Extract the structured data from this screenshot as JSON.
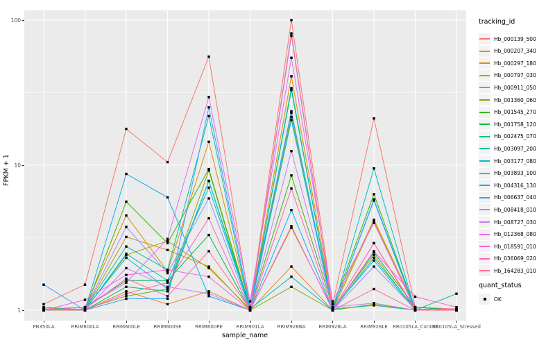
{
  "figure": {
    "y_axis_title": "FPKM + 1",
    "x_axis_title": "sample_name",
    "legend": {
      "tracking_title": "tracking_id",
      "quant_title": "quant_status",
      "quant_items": [
        "OK"
      ]
    }
  },
  "chart_data": {
    "type": "line",
    "title": "",
    "xlabel": "sample_name",
    "ylabel": "FPKM + 1",
    "y_scale": "log10",
    "ylim": [
      0.85,
      115
    ],
    "y_ticks": [
      1,
      10,
      100
    ],
    "y_minor_ticks": [
      3.162,
      31.62
    ],
    "grid": true,
    "legend_position": "right",
    "panel_bg": "#EBEBEB",
    "grid_color": "#FFFFFF",
    "point_color": "#000000",
    "point_shape": "square",
    "quant_status_value": "OK",
    "categories": [
      "PB350LA",
      "RRIM600LA",
      "RRIM600LE",
      "RRIM600SE",
      "RRIM600PE",
      "RRIM901LA",
      "RRIM928BA",
      "RRIM928LA",
      "RRIM928LE",
      "RRII105LA_Control",
      "RRII105LA_Stressed"
    ],
    "series": [
      {
        "name": "Hb_000139_500",
        "color": "#F8766D",
        "values": [
          1.1,
          1.5,
          17.8,
          10.5,
          56,
          1.05,
          100,
          1.1,
          21,
          1.05,
          1.02
        ]
      },
      {
        "name": "Hb_000207_340",
        "color": "#EA8331",
        "values": [
          1.0,
          1.0,
          1.35,
          1.1,
          1.35,
          1.0,
          2.0,
          1.0,
          2.9,
          1.02,
          1.0
        ]
      },
      {
        "name": "Hb_000297_180",
        "color": "#D89000",
        "values": [
          1.02,
          1.05,
          4.5,
          1.85,
          14.5,
          1.02,
          41,
          1.05,
          4.2,
          1.05,
          1.0
        ]
      },
      {
        "name": "Hb_000797_030",
        "color": "#C09B00",
        "values": [
          1.0,
          1.02,
          3.2,
          2.6,
          2.0,
          1.0,
          3.7,
          1.02,
          2.4,
          1.0,
          1.0
        ]
      },
      {
        "name": "Hb_000911_050",
        "color": "#A3A500",
        "values": [
          1.02,
          1.0,
          2.4,
          3.0,
          1.95,
          1.02,
          21.5,
          1.0,
          4.1,
          1.02,
          1.0
        ]
      },
      {
        "name": "Hb_001360_060",
        "color": "#7CAE00",
        "values": [
          1.0,
          1.02,
          1.25,
          1.4,
          9.2,
          1.0,
          1.45,
          1.0,
          1.1,
          1.0,
          1.02
        ]
      },
      {
        "name": "Hb_001545_270",
        "color": "#39B600",
        "values": [
          1.05,
          1.0,
          5.6,
          2.9,
          9.4,
          1.02,
          8.5,
          1.05,
          6.3,
          1.02,
          1.0
        ]
      },
      {
        "name": "Hb_001758_120",
        "color": "#00BB4E",
        "values": [
          1.0,
          1.05,
          1.6,
          1.6,
          3.3,
          1.0,
          33,
          1.0,
          2.5,
          1.05,
          1.0
        ]
      },
      {
        "name": "Hb_002475_070",
        "color": "#00BF7D",
        "values": [
          1.02,
          1.0,
          1.45,
          1.35,
          7.8,
          1.05,
          23,
          1.02,
          1.08,
          1.0,
          1.3
        ]
      },
      {
        "name": "Hb_003097_200",
        "color": "#00C1A3",
        "values": [
          1.0,
          1.02,
          2.75,
          1.9,
          21.8,
          1.0,
          34,
          1.0,
          2.3,
          1.02,
          1.0
        ]
      },
      {
        "name": "Hb_003177_080",
        "color": "#00BFC4",
        "values": [
          1.05,
          1.0,
          2.45,
          1.6,
          7.0,
          1.02,
          1.7,
          1.0,
          9.5,
          1.0,
          1.0
        ]
      },
      {
        "name": "Hb_003893_100",
        "color": "#00BAE0",
        "values": [
          1.0,
          1.02,
          2.3,
          1.4,
          7.8,
          1.0,
          20.5,
          1.02,
          2.2,
          1.0,
          1.02
        ]
      },
      {
        "name": "Hb_004316_130",
        "color": "#00B0F6",
        "values": [
          1.02,
          1.0,
          8.7,
          6.0,
          1.25,
          1.0,
          4.9,
          1.0,
          5.8,
          1.02,
          1.0
        ]
      },
      {
        "name": "Hb_006637_040",
        "color": "#35A2FF",
        "values": [
          1.5,
          1.0,
          1.2,
          1.2,
          25,
          1.05,
          23.5,
          1.0,
          5.7,
          1.0,
          1.0
        ]
      },
      {
        "name": "Hb_008418_010",
        "color": "#9590FF",
        "values": [
          1.0,
          1.02,
          3.75,
          1.8,
          5.9,
          1.0,
          78,
          1.0,
          2.0,
          1.02,
          1.0
        ]
      },
      {
        "name": "Hb_008727_030",
        "color": "#C77CFF",
        "values": [
          1.02,
          1.0,
          1.95,
          1.45,
          1.3,
          1.0,
          12.5,
          1.05,
          1.12,
          1.0,
          1.02
        ]
      },
      {
        "name": "Hb_012368_080",
        "color": "#E76BF3",
        "values": [
          1.0,
          1.05,
          1.55,
          3.1,
          29.5,
          1.15,
          55,
          1.15,
          4.0,
          1.02,
          1.0
        ]
      },
      {
        "name": "Hb_018591_010",
        "color": "#FA62DB",
        "values": [
          1.0,
          1.18,
          1.75,
          1.9,
          1.7,
          1.0,
          3.8,
          1.0,
          2.55,
          1.24,
          1.05
        ]
      },
      {
        "name": "Hb_036069_020",
        "color": "#FF62BC",
        "values": [
          1.02,
          1.0,
          1.3,
          1.55,
          4.3,
          1.0,
          6.9,
          1.0,
          2.9,
          1.0,
          1.0
        ]
      },
      {
        "name": "Hb_164283_010",
        "color": "#FF6A98",
        "values": [
          1.0,
          1.02,
          1.65,
          1.25,
          2.55,
          1.02,
          81,
          1.0,
          1.4,
          1.0,
          1.0
        ]
      }
    ]
  }
}
